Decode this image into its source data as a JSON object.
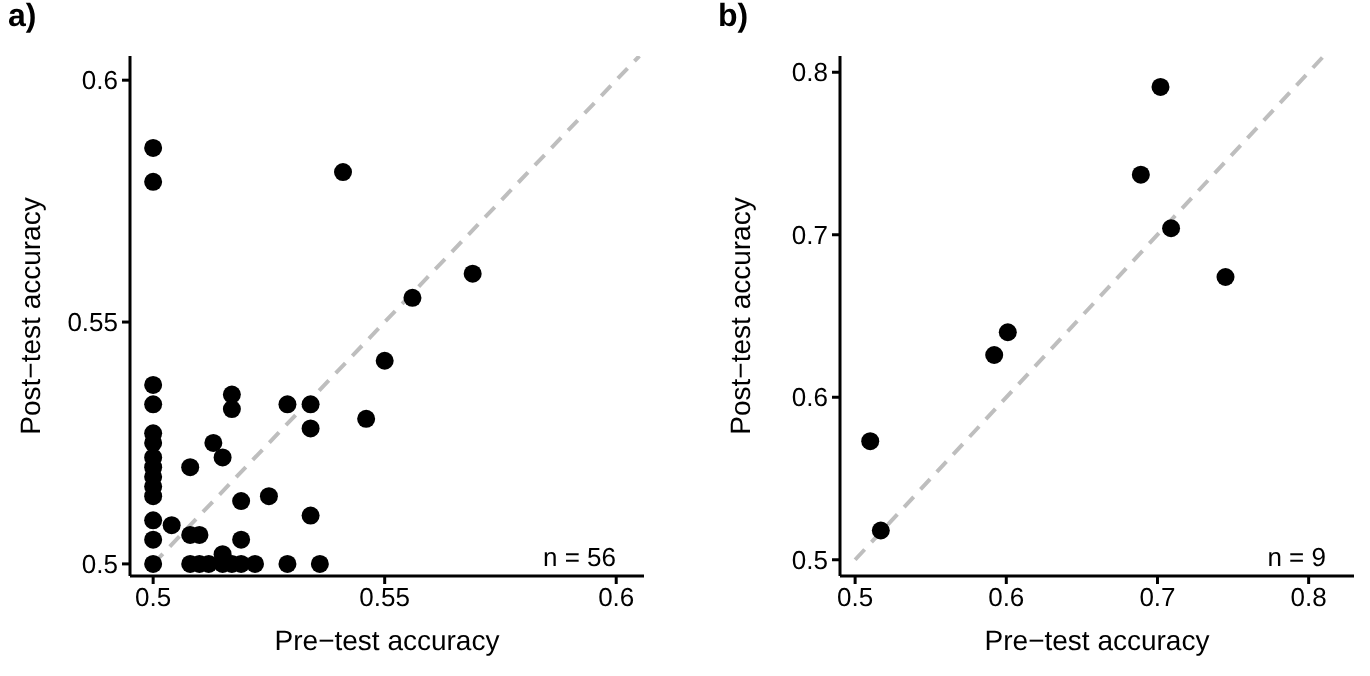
{
  "chart_data": [
    {
      "type": "scatter",
      "title": "a)",
      "xlabel": "Pre−test accuracy",
      "ylabel": "Post−test accuracy",
      "annotations": [
        "n = 56"
      ],
      "xlim": [
        0.495,
        0.606
      ],
      "ylim": [
        0.4975,
        0.605
      ],
      "xticks": [
        0.5,
        0.55,
        0.6
      ],
      "yticks": [
        0.5,
        0.55,
        0.6
      ],
      "marker": "circle",
      "series": [
        {
          "type": "line",
          "color": "#bebebe",
          "line_style": "dashed",
          "marker": "none",
          "x": [
            0.5,
            0.605
          ],
          "values": [
            0.5,
            0.605
          ]
        },
        {
          "color": "#000000",
          "x": [
            0.5,
            0.5,
            0.541,
            0.569,
            0.556,
            0.55,
            0.546,
            0.5,
            0.5,
            0.517,
            0.517,
            0.529,
            0.534,
            0.534,
            0.5,
            0.5,
            0.5,
            0.5,
            0.5,
            0.5,
            0.5,
            0.5,
            0.5,
            0.5,
            0.513,
            0.515,
            0.508,
            0.519,
            0.525,
            0.534,
            0.504,
            0.508,
            0.51,
            0.519,
            0.515,
            0.508,
            0.51,
            0.512,
            0.515,
            0.517,
            0.519,
            0.521,
            0.522,
            0.528,
            0.529,
            0.536
          ],
          "values": [
            0.586,
            0.579,
            0.581,
            0.56,
            0.555,
            0.542,
            0.53,
            0.537,
            0.533,
            0.535,
            0.532,
            0.533,
            0.533,
            0.528,
            0.527,
            0.525,
            0.522,
            0.52,
            0.518,
            0.516,
            0.514,
            0.509,
            0.505,
            0.5,
            0.525,
            0.522,
            0.52,
            0.513,
            0.514,
            0.51,
            0.508,
            0.506,
            0.506,
            0.505,
            0.502,
            0.5,
            0.5,
            0.5,
            0.5,
            0.5,
            0.5,
            null,
            0.5,
            null,
            0.5,
            0.5
          ]
        }
      ]
    },
    {
      "type": "scatter",
      "title": "b)",
      "xlabel": "Pre−test accuracy",
      "ylabel": "Post−test accuracy",
      "annotations": [
        "n = 9"
      ],
      "xlim": [
        0.49,
        0.83
      ],
      "ylim": [
        0.49,
        0.81
      ],
      "xticks": [
        0.5,
        0.6,
        0.7,
        0.8
      ],
      "yticks": [
        0.5,
        0.6,
        0.7,
        0.8
      ],
      "marker": "circle",
      "series": [
        {
          "type": "line",
          "color": "#bebebe",
          "line_style": "dashed",
          "marker": "none",
          "x": [
            0.5,
            0.81
          ],
          "values": [
            0.5,
            0.81
          ]
        },
        {
          "color": "#000000",
          "x": [
            0.51,
            0.517,
            0.592,
            0.601,
            0.689,
            0.702,
            0.709,
            0.745
          ],
          "values": [
            0.573,
            0.518,
            0.626,
            0.64,
            0.737,
            0.791,
            0.704,
            0.674
          ]
        }
      ]
    }
  ]
}
